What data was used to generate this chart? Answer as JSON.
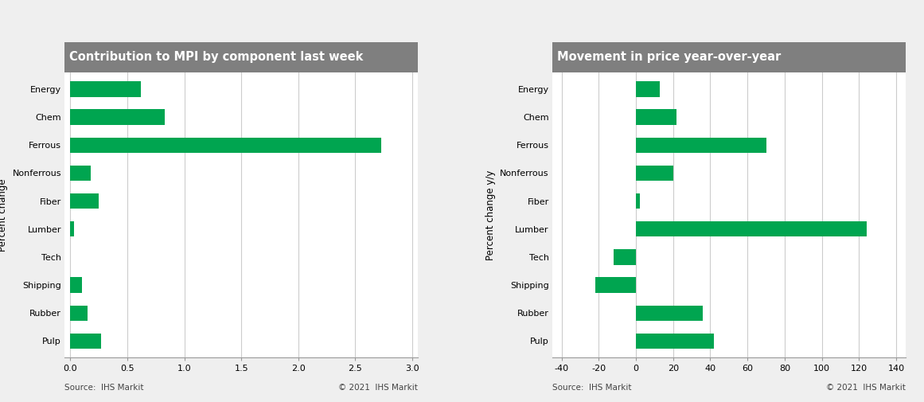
{
  "chart1": {
    "title": "Contribution to MPI by component last week",
    "categories": [
      "Energy",
      "Chem",
      "Ferrous",
      "Nonferrous",
      "Fiber",
      "Lumber",
      "Tech",
      "Shipping",
      "Rubber",
      "Pulp"
    ],
    "values": [
      0.62,
      0.83,
      2.73,
      0.18,
      0.25,
      0.03,
      0.0,
      0.1,
      0.15,
      0.27
    ],
    "ylabel": "Percent change",
    "xlim": [
      -0.05,
      3.05
    ],
    "xticks": [
      0.0,
      0.5,
      1.0,
      1.5,
      2.0,
      2.5,
      3.0
    ],
    "xtick_labels": [
      "0.0",
      "0.5",
      "1.0",
      "1.5",
      "2.0",
      "2.5",
      "3.0"
    ]
  },
  "chart2": {
    "title": "Movement in price year-over-year",
    "categories": [
      "Energy",
      "Chem",
      "Ferrous",
      "Nonferrous",
      "Fiber",
      "Lumber",
      "Tech",
      "Shipping",
      "Rubber",
      "Pulp"
    ],
    "values": [
      13,
      22,
      70,
      20,
      2,
      124,
      -12,
      -22,
      36,
      42
    ],
    "ylabel": "Percent change y/y",
    "xlim": [
      -45,
      145
    ],
    "xticks": [
      -40,
      -20,
      0,
      20,
      40,
      60,
      80,
      100,
      120,
      140
    ],
    "xtick_labels": [
      "-40",
      "-20",
      "0",
      "20",
      "40",
      "60",
      "80",
      "100",
      "120",
      "140"
    ]
  },
  "bar_color": "#00A550",
  "title_bg_color": "#7f7f7f",
  "title_text_color": "#ffffff",
  "fig_bg_color": "#efefef",
  "plot_bg_color": "#ffffff",
  "grid_color": "#cccccc",
  "source_text": "Source:  IHS Markit",
  "copyright_text": "© 2021  IHS Markit",
  "title_fontsize": 10.5,
  "axis_label_fontsize": 8.5,
  "tick_fontsize": 8,
  "source_fontsize": 7.5,
  "bar_height": 0.55
}
